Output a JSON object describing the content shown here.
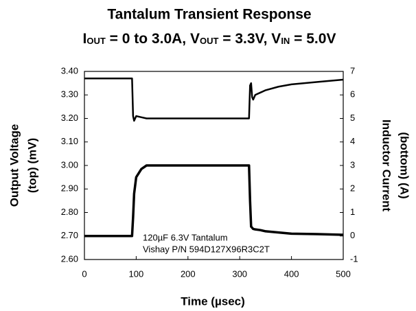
{
  "chart_data": {
    "type": "line",
    "title": "Tantalum Transient Response",
    "subtitle": [
      {
        "text": "I"
      },
      {
        "text": "OUT",
        "baseline": "sub"
      },
      {
        "text": " = 0 to 3.0A, V"
      },
      {
        "text": "OUT",
        "baseline": "sub"
      },
      {
        "text": " = 3.3V, V"
      },
      {
        "text": "IN",
        "baseline": "sub"
      },
      {
        "text": " = 5.0V"
      }
    ],
    "xlabel": "Time (µsec)",
    "ylabel": [
      "Output Voltage",
      "(top) (mV)"
    ],
    "y2label": [
      "Inductor Current",
      "(bottom) (A)"
    ],
    "annotation": [
      "120µF 6.3V Tantalum",
      "Vishay P/N 594D127X96R3C2T"
    ],
    "x": [
      0,
      90,
      92,
      94,
      96,
      100,
      110,
      120,
      150,
      200,
      250,
      300,
      316,
      318,
      320,
      322,
      324,
      326,
      330,
      340,
      350,
      375,
      400,
      450,
      500
    ],
    "series": [
      {
        "color": "#000000",
        "axis": "y",
        "values": [
          3.37,
          3.37,
          3.37,
          3.21,
          3.19,
          3.21,
          3.205,
          3.2,
          3.2,
          3.2,
          3.2,
          3.2,
          3.2,
          3.2,
          3.34,
          3.35,
          3.29,
          3.28,
          3.3,
          3.31,
          3.32,
          3.335,
          3.345,
          3.355,
          3.365
        ]
      },
      {
        "color": "#000000",
        "axis": "y2",
        "values": [
          0,
          0,
          0,
          0.8,
          1.8,
          2.5,
          2.85,
          3.0,
          3.0,
          3.0,
          3.0,
          3.0,
          3.0,
          3.0,
          1.5,
          0.4,
          0.35,
          0.3,
          0.28,
          0.25,
          0.2,
          0.15,
          0.1,
          0.08,
          0.05
        ]
      }
    ],
    "xlim": [
      0,
      500
    ],
    "xticks": [
      0,
      100,
      200,
      300,
      400,
      500
    ],
    "ylim": [
      2.6,
      3.4
    ],
    "yticks": [
      {
        "value": 2.6,
        "label": "2.60"
      },
      {
        "value": 2.7,
        "label": "2.70"
      },
      {
        "value": 2.8,
        "label": "2.80"
      },
      {
        "value": 2.9,
        "label": "2.90"
      },
      {
        "value": 3.0,
        "label": "3.00"
      },
      {
        "value": 3.1,
        "label": "3.10"
      },
      {
        "value": 3.2,
        "label": "3.20"
      },
      {
        "value": 3.3,
        "label": "3.30"
      },
      {
        "value": 3.4,
        "label": "3.40"
      }
    ],
    "y2lim": [
      -1,
      7
    ],
    "y2ticks": [
      -1,
      0,
      1,
      2,
      3,
      4,
      5,
      6,
      7
    ],
    "grid": false
  }
}
